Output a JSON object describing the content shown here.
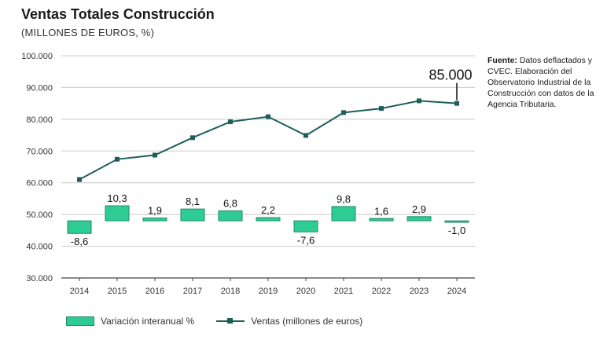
{
  "header": {
    "title": "Ventas Totales Construcción",
    "subtitle": "(MILLONES DE EUROS, %)"
  },
  "source": {
    "label": "Fuente:",
    "text": " Datos deflactados y CVEC. Elaboración del Observatorio Industrial de la Construcción con datos de la Agencia Tributaria."
  },
  "legend": {
    "bars": "Variación interanual %",
    "line": "Ventas (millones de euros)"
  },
  "colors": {
    "bar_fill": "#2ecc94",
    "bar_stroke": "#1e8a63",
    "line": "#1e5e5a",
    "grid": "#c8c8c8",
    "axis": "#444444"
  },
  "chart_data": {
    "type": "bar+line",
    "categories": [
      "2014",
      "2015",
      "2016",
      "2017",
      "2018",
      "2019",
      "2020",
      "2021",
      "2022",
      "2023",
      "2024"
    ],
    "ylim": [
      30000,
      100000
    ],
    "yticks": [
      30000,
      40000,
      50000,
      60000,
      70000,
      80000,
      90000,
      100000
    ],
    "ytick_labels": [
      "30.000",
      "40.000",
      "50.000",
      "60.000",
      "70.000",
      "80.000",
      "90.000",
      "100.000"
    ],
    "grid": true,
    "series": [
      {
        "name": "Variación interanual %",
        "type": "bar",
        "values": [
          -8.6,
          10.3,
          1.9,
          8.1,
          6.8,
          2.2,
          -7.6,
          9.8,
          1.6,
          2.9,
          -1.0
        ],
        "labels": [
          "-8,6",
          "10,3",
          "1,9",
          "8,1",
          "6,8",
          "2,2",
          "-7,6",
          "9,8",
          "1,6",
          "2,9",
          "-1,0"
        ]
      },
      {
        "name": "Ventas (millones de euros)",
        "type": "line",
        "values": [
          61000,
          67400,
          68700,
          74200,
          79200,
          80800,
          74900,
          82100,
          83400,
          85800,
          85000
        ]
      }
    ],
    "annotation": {
      "category": "2024",
      "text": "85.000"
    }
  }
}
